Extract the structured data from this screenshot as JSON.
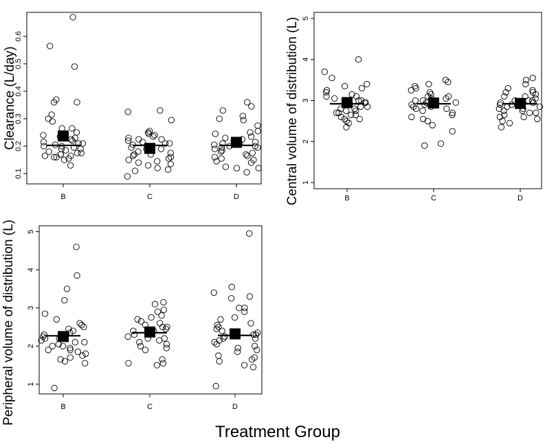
{
  "figure": {
    "x_axis_title": "Treatment Group"
  },
  "chart_data": [
    {
      "type": "scatter",
      "title": "",
      "ylabel": "Clearance (L/day)",
      "xlabel": "",
      "categories": [
        "B",
        "C",
        "D"
      ],
      "ylim": [
        0.07,
        0.68
      ],
      "yticks": [
        0.1,
        0.2,
        0.3,
        0.4,
        0.5,
        0.6
      ],
      "ytick_labels": [
        "0.1",
        "0.2",
        "0.3",
        "0.4",
        "0.5",
        "0.6"
      ],
      "median": [
        0.203,
        0.203,
        0.203
      ],
      "mean": [
        0.237,
        0.192,
        0.214
      ],
      "series": [
        {
          "name": "B",
          "values": [
            0.67,
            0.565,
            0.49,
            0.37,
            0.36,
            0.36,
            0.315,
            0.3,
            0.29,
            0.265,
            0.265,
            0.25,
            0.24,
            0.235,
            0.23,
            0.225,
            0.22,
            0.215,
            0.21,
            0.21,
            0.205,
            0.2,
            0.2,
            0.195,
            0.19,
            0.19,
            0.185,
            0.18,
            0.175,
            0.175,
            0.17,
            0.17,
            0.165,
            0.165,
            0.16,
            0.16,
            0.155,
            0.15,
            0.13
          ]
        },
        {
          "name": "C",
          "values": [
            0.33,
            0.325,
            0.295,
            0.255,
            0.25,
            0.245,
            0.24,
            0.235,
            0.23,
            0.225,
            0.225,
            0.22,
            0.215,
            0.21,
            0.21,
            0.205,
            0.2,
            0.2,
            0.195,
            0.19,
            0.19,
            0.185,
            0.18,
            0.175,
            0.17,
            0.17,
            0.165,
            0.16,
            0.155,
            0.15,
            0.145,
            0.14,
            0.135,
            0.13,
            0.12,
            0.115,
            0.11,
            0.09
          ]
        },
        {
          "name": "D",
          "values": [
            0.36,
            0.345,
            0.33,
            0.31,
            0.3,
            0.295,
            0.275,
            0.255,
            0.25,
            0.245,
            0.235,
            0.23,
            0.225,
            0.22,
            0.215,
            0.21,
            0.21,
            0.205,
            0.2,
            0.2,
            0.195,
            0.195,
            0.19,
            0.185,
            0.18,
            0.175,
            0.17,
            0.165,
            0.16,
            0.155,
            0.15,
            0.145,
            0.14,
            0.125,
            0.12,
            0.12,
            0.105
          ]
        }
      ]
    },
    {
      "type": "scatter",
      "title": "",
      "ylabel": "Central volume of distribution (L)",
      "xlabel": "",
      "categories": [
        "B",
        "C",
        "D"
      ],
      "ylim": [
        0.9,
        5.1
      ],
      "yticks": [
        1,
        2,
        3,
        4,
        5
      ],
      "ytick_labels": [
        "1",
        "2",
        "3",
        "4",
        "5"
      ],
      "median": [
        2.92,
        2.92,
        2.92
      ],
      "mean": [
        2.95,
        2.94,
        2.93
      ],
      "series": [
        {
          "name": "B",
          "values": [
            4.0,
            3.7,
            3.55,
            3.4,
            3.35,
            3.3,
            3.25,
            3.2,
            3.15,
            3.1,
            3.1,
            3.05,
            3.0,
            3.0,
            2.95,
            2.95,
            2.9,
            2.9,
            2.85,
            2.85,
            2.8,
            2.8,
            2.75,
            2.75,
            2.7,
            2.7,
            2.65,
            2.65,
            2.6,
            2.55,
            2.55,
            2.5,
            2.45,
            2.35
          ]
        },
        {
          "name": "C",
          "values": [
            3.5,
            3.45,
            3.4,
            3.35,
            3.3,
            3.25,
            3.2,
            3.15,
            3.1,
            3.1,
            3.05,
            3.05,
            3.0,
            3.0,
            2.95,
            2.95,
            2.9,
            2.9,
            2.85,
            2.85,
            2.8,
            2.8,
            2.75,
            2.7,
            2.65,
            2.6,
            2.55,
            2.5,
            2.4,
            2.25,
            1.95,
            1.9
          ]
        },
        {
          "name": "D",
          "values": [
            3.55,
            3.5,
            3.4,
            3.3,
            3.25,
            3.2,
            3.2,
            3.15,
            3.1,
            3.1,
            3.05,
            3.0,
            3.0,
            3.0,
            2.95,
            2.95,
            2.9,
            2.9,
            2.9,
            2.85,
            2.85,
            2.8,
            2.8,
            2.75,
            2.75,
            2.7,
            2.7,
            2.65,
            2.6,
            2.6,
            2.55,
            2.5,
            2.45,
            2.35
          ]
        }
      ]
    },
    {
      "type": "scatter",
      "title": "",
      "ylabel": "Peripheral volume of distribution (L)",
      "xlabel": "",
      "categories": [
        "B",
        "C",
        "D"
      ],
      "ylim": [
        0.8,
        5.1
      ],
      "yticks": [
        1,
        2,
        3,
        4,
        5
      ],
      "ytick_labels": [
        "1",
        "2",
        "3",
        "4",
        "5"
      ],
      "median": [
        2.27,
        2.35,
        2.28
      ],
      "mean": [
        2.25,
        2.37,
        2.32
      ],
      "series": [
        {
          "name": "B",
          "values": [
            4.6,
            3.85,
            3.5,
            3.2,
            2.85,
            2.7,
            2.6,
            2.55,
            2.5,
            2.45,
            2.4,
            2.35,
            2.3,
            2.3,
            2.25,
            2.2,
            2.2,
            2.15,
            2.1,
            2.1,
            2.05,
            2.0,
            2.0,
            1.95,
            1.9,
            1.9,
            1.85,
            1.8,
            1.75,
            1.7,
            1.65,
            1.6,
            1.55,
            0.9
          ]
        },
        {
          "name": "C",
          "values": [
            3.15,
            3.1,
            2.95,
            2.9,
            2.8,
            2.75,
            2.7,
            2.65,
            2.6,
            2.55,
            2.5,
            2.5,
            2.45,
            2.4,
            2.4,
            2.35,
            2.3,
            2.3,
            2.25,
            2.2,
            2.2,
            2.15,
            2.1,
            2.05,
            2.0,
            1.95,
            1.9,
            1.65,
            1.55,
            1.55,
            1.5
          ]
        },
        {
          "name": "D",
          "values": [
            4.95,
            3.55,
            3.4,
            3.3,
            3.25,
            3.0,
            3.0,
            2.9,
            2.75,
            2.7,
            2.6,
            2.55,
            2.5,
            2.45,
            2.4,
            2.35,
            2.3,
            2.3,
            2.25,
            2.2,
            2.2,
            2.15,
            2.1,
            2.05,
            2.0,
            1.95,
            1.9,
            1.85,
            1.75,
            1.7,
            1.65,
            1.6,
            1.5,
            1.45,
            0.95
          ]
        }
      ]
    }
  ]
}
